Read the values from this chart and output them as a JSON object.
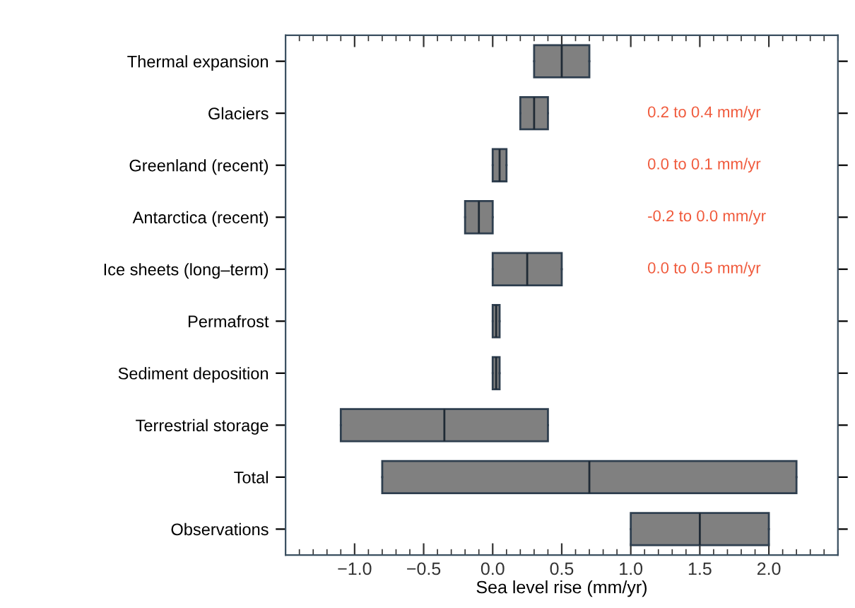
{
  "chart_data": {
    "type": "box",
    "orientation": "horizontal",
    "xlabel": "Sea level rise (mm/yr)",
    "categories": [
      "Thermal expansion",
      "Glaciers",
      "Greenland (recent)",
      "Antarctica (recent)",
      "Ice sheets (long–term)",
      "Permafrost",
      "Sediment deposition",
      "Terrestrial storage",
      "Total",
      "Observations"
    ],
    "boxes": [
      {
        "low": 0.3,
        "q1": 0.3,
        "median": 0.5,
        "q3": 0.7,
        "high": 0.7
      },
      {
        "low": 0.2,
        "q1": 0.2,
        "median": 0.3,
        "q3": 0.4,
        "high": 0.4
      },
      {
        "low": 0.0,
        "q1": 0.0,
        "median": 0.05,
        "q3": 0.1,
        "high": 0.1
      },
      {
        "low": -0.2,
        "q1": -0.2,
        "median": -0.1,
        "q3": 0.0,
        "high": 0.0
      },
      {
        "low": 0.0,
        "q1": 0.0,
        "median": 0.25,
        "q3": 0.5,
        "high": 0.5
      },
      {
        "low": 0.0,
        "q1": 0.0,
        "median": 0.025,
        "q3": 0.05,
        "high": 0.05
      },
      {
        "low": 0.0,
        "q1": 0.0,
        "median": 0.025,
        "q3": 0.05,
        "high": 0.05
      },
      {
        "low": -1.1,
        "q1": -1.1,
        "median": -0.35,
        "q3": 0.4,
        "high": 0.4
      },
      {
        "low": -0.8,
        "q1": -0.8,
        "median": 0.7,
        "q3": 2.2,
        "high": 2.2
      },
      {
        "low": 1.0,
        "q1": 1.0,
        "median": 1.5,
        "q3": 2.0,
        "high": 2.0
      }
    ],
    "color": "#808080",
    "xlim": [
      -1.5,
      2.5
    ],
    "xticks": [
      {
        "value": -1.0,
        "label": "−1.0"
      },
      {
        "value": -0.5,
        "label": "−0.5"
      },
      {
        "value": 0.0,
        "label": "0.0"
      },
      {
        "value": 0.5,
        "label": "0.5"
      },
      {
        "value": 1.0,
        "label": "1.0"
      },
      {
        "value": 1.5,
        "label": "1.5"
      },
      {
        "value": 2.0,
        "label": "2.0"
      }
    ],
    "annotations": [
      "0.2 to 0.4 mm/yr",
      "0.0 to 0.1 mm/yr",
      "-0.2 to 0.0 mm/yr",
      "0.0 to 0.5 mm/yr"
    ],
    "grid": false,
    "legend": false
  }
}
